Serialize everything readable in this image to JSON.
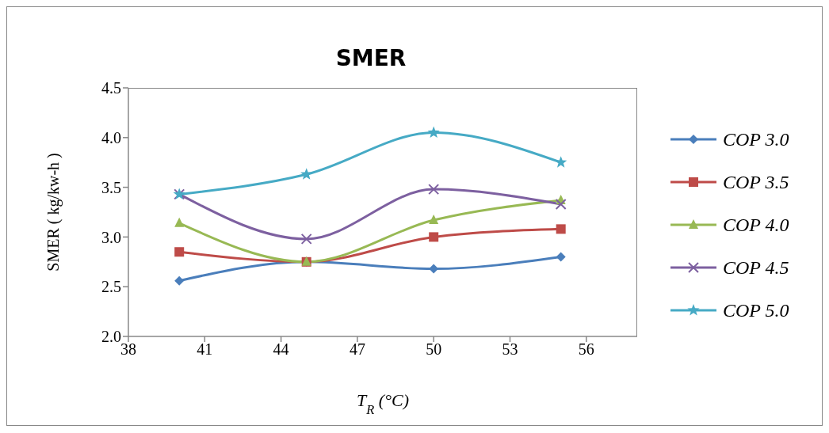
{
  "chart_data": {
    "type": "line",
    "title": "SMER",
    "xlabel": "T$_{R}$ (°C)",
    "ylabel": "SMER ( kg/kw-h )",
    "x": [
      40,
      45,
      50,
      55
    ],
    "series": [
      {
        "name": "COP 3.0",
        "color": "#4a7ebb",
        "marker": "diamond",
        "values": [
          2.56,
          2.75,
          2.68,
          2.8
        ]
      },
      {
        "name": "COP 3.5",
        "color": "#be4b48",
        "marker": "square",
        "values": [
          2.85,
          2.75,
          3.0,
          3.08
        ]
      },
      {
        "name": "COP 4.0",
        "color": "#98b954",
        "marker": "triangle",
        "values": [
          3.14,
          2.75,
          3.17,
          3.37
        ]
      },
      {
        "name": "COP 4.5",
        "color": "#7d60a0",
        "marker": "cross",
        "values": [
          3.43,
          2.98,
          3.48,
          3.33
        ]
      },
      {
        "name": "COP 5.0",
        "color": "#46aac5",
        "marker": "star",
        "values": [
          3.43,
          3.63,
          4.05,
          3.75
        ]
      }
    ],
    "xlim": [
      38,
      58
    ],
    "xticks": [
      38,
      41,
      44,
      47,
      50,
      53,
      56
    ],
    "ylim": [
      2.0,
      4.5
    ],
    "yticks": [
      {
        "value": 2.0,
        "label": "2.0"
      },
      {
        "value": 2.5,
        "label": "2.5"
      },
      {
        "value": 3.0,
        "label": "3.0"
      },
      {
        "value": 3.5,
        "label": "3.5"
      },
      {
        "value": 4.0,
        "label": "4.0"
      },
      {
        "value": 4.5,
        "label": "4.5"
      }
    ],
    "grid": false,
    "legend": "right",
    "line_style": "solid"
  }
}
